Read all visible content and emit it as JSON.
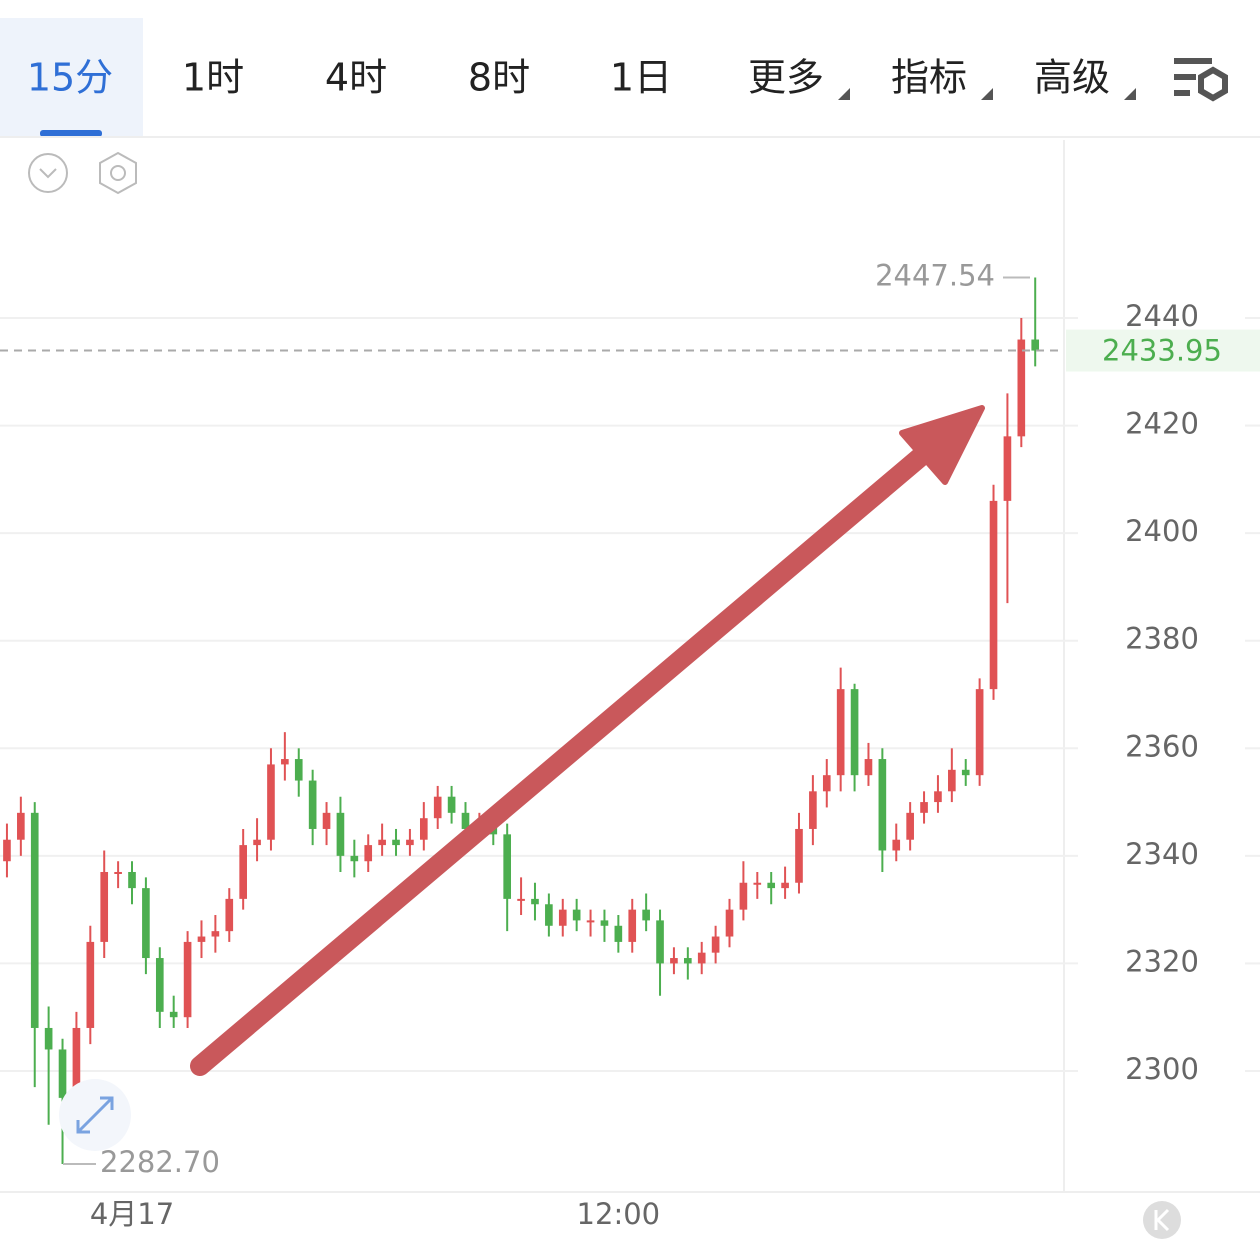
{
  "toolbar": {
    "tabs": [
      "15分",
      "1时",
      "4时",
      "8时",
      "1日"
    ],
    "dropdowns": [
      "更多",
      "指标",
      "高级"
    ],
    "active": 0
  },
  "chart_data": {
    "type": "candlestick",
    "open": [
      2339,
      2343,
      2348,
      2308,
      2304,
      2295,
      2308,
      2324,
      2337,
      2337,
      2334,
      2321,
      2311,
      2310,
      2324,
      2325,
      2326,
      2332,
      2342,
      2343,
      2357,
      2358,
      2354,
      2345,
      2348,
      2340,
      2339,
      2342,
      2343,
      2342,
      2343,
      2347,
      2351,
      2348,
      2345,
      2346,
      2344,
      2332,
      2332,
      2331,
      2327,
      2330,
      2328,
      2328,
      2327,
      2324,
      2330,
      2328,
      2320,
      2321,
      2320,
      2322,
      2325,
      2330,
      2335,
      2335,
      2334,
      2335,
      2345,
      2352,
      2355,
      2371,
      2355,
      2358,
      2341,
      2343,
      2348,
      2350,
      2352,
      2356,
      2355,
      2371,
      2406,
      2418,
      2436
    ],
    "high": [
      2346,
      2351,
      2350,
      2312,
      2306,
      2311,
      2327,
      2341,
      2339,
      2339,
      2336,
      2323,
      2314,
      2326,
      2328,
      2329,
      2334,
      2345,
      2347,
      2360,
      2363,
      2360,
      2356,
      2350,
      2351,
      2343,
      2344,
      2346,
      2345,
      2345,
      2350,
      2353,
      2353,
      2350,
      2348,
      2348,
      2346,
      2336,
      2335,
      2333,
      2332,
      2332,
      2330,
      2330,
      2329,
      2332,
      2333,
      2330,
      2323,
      2323,
      2324,
      2327,
      2332,
      2339,
      2337,
      2337,
      2338,
      2348,
      2355,
      2358,
      2375,
      2372,
      2361,
      2360,
      2346,
      2350,
      2352,
      2355,
      2360,
      2358,
      2373,
      2409,
      2426,
      2440,
      2447.54
    ],
    "low": [
      2336,
      2340,
      2297,
      2290,
      2282.7,
      2292,
      2305,
      2321,
      2334,
      2331,
      2318,
      2308,
      2308,
      2308,
      2321,
      2322,
      2324,
      2330,
      2339,
      2341,
      2354,
      2351,
      2342,
      2342,
      2337,
      2336,
      2337,
      2340,
      2340,
      2340,
      2341,
      2345,
      2346,
      2343,
      2343,
      2342,
      2326,
      2329,
      2328,
      2325,
      2325,
      2326,
      2325,
      2324,
      2322,
      2322,
      2326,
      2314,
      2318,
      2317,
      2318,
      2320,
      2323,
      2328,
      2332,
      2331,
      2332,
      2333,
      2342,
      2349,
      2352,
      2352,
      2353,
      2337,
      2339,
      2341,
      2346,
      2348,
      2350,
      2353,
      2353,
      2369,
      2387,
      2416,
      2431
    ],
    "close": [
      2343,
      2348,
      2308,
      2304,
      2295,
      2308,
      2324,
      2337,
      2337,
      2334,
      2321,
      2311,
      2310,
      2324,
      2325,
      2326,
      2332,
      2342,
      2343,
      2357,
      2358,
      2354,
      2345,
      2348,
      2340,
      2339,
      2342,
      2343,
      2342,
      2343,
      2347,
      2351,
      2348,
      2345,
      2346,
      2344,
      2332,
      2332,
      2331,
      2327,
      2330,
      2328,
      2328,
      2327,
      2324,
      2330,
      2328,
      2320,
      2321,
      2320,
      2322,
      2325,
      2330,
      2335,
      2335,
      2334,
      2335,
      2345,
      2352,
      2355,
      2371,
      2355,
      2358,
      2341,
      2343,
      2348,
      2350,
      2352,
      2356,
      2355,
      2371,
      2406,
      2418,
      2436,
      2433.95
    ],
    "up_color": "#e05254",
    "down_color": "#4cae4f",
    "xlim": [
      -0.5,
      76
    ],
    "xticks": [
      {
        "value": 9,
        "label": "4月17"
      },
      {
        "value": 44,
        "label": "12:00"
      }
    ],
    "ylim": [
      2277.5,
      2473.1
    ],
    "yticks": [
      2300,
      2320,
      2340,
      2360,
      2380,
      2400,
      2420,
      2440
    ],
    "grid": true,
    "last_price": 2433.95,
    "max_annotation": 2447.54,
    "min_annotation": {
      "value": 2282.7,
      "label": "2282.70"
    }
  }
}
